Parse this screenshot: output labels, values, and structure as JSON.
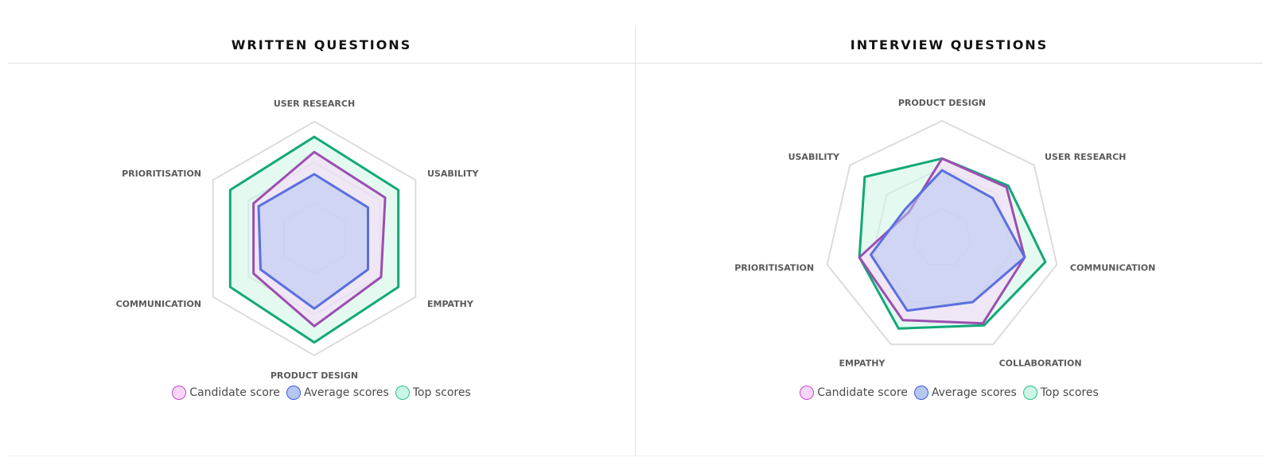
{
  "colors": {
    "candidate": {
      "stroke": "#9a4fb0",
      "fill": "#f7d6f9",
      "legend_border": "#c24bc9"
    },
    "average": {
      "stroke": "#5b6fdf",
      "fill": "#b5c7ee",
      "legend_border": "#3c5ad9"
    },
    "top": {
      "stroke": "#12a877",
      "fill": "#cdf5e6",
      "legend_border": "#2bbf8b"
    }
  },
  "legend": [
    {
      "key": "candidate",
      "label": "Candidate score"
    },
    {
      "key": "average",
      "label": "Average scores"
    },
    {
      "key": "top",
      "label": "Top scores"
    }
  ],
  "chart_data": [
    {
      "type": "radar",
      "title": "WRITTEN QUESTIONS",
      "axes": [
        "USER RESEARCH",
        "USABILITY",
        "EMPATHY",
        "PRODUCT DESIGN",
        "COMMUNICATION",
        "PRIORITISATION"
      ],
      "range": [
        0,
        100
      ],
      "grid_levels": [
        30,
        65,
        100
      ],
      "series": [
        {
          "key": "top",
          "values": [
            87,
            83,
            83,
            89,
            83,
            83
          ]
        },
        {
          "key": "candidate",
          "values": [
            74,
            70,
            66,
            75,
            60,
            60
          ]
        },
        {
          "key": "average",
          "values": [
            55,
            53,
            53,
            60,
            53,
            55
          ]
        }
      ]
    },
    {
      "type": "radar",
      "title": "INTERVIEW QUESTIONS",
      "axes": [
        "PRODUCT DESIGN",
        "USER RESEARCH",
        "COMMUNICATION",
        "COLLABORATION",
        "EMPATHY",
        "PRIORITISATION",
        "USABILITY"
      ],
      "range": [
        0,
        100
      ],
      "grid_levels": [
        25,
        60,
        100
      ],
      "series": [
        {
          "key": "top",
          "values": [
            68,
            72,
            90,
            82,
            85,
            72,
            84
          ]
        },
        {
          "key": "candidate",
          "values": [
            68,
            70,
            72,
            80,
            77,
            72,
            36
          ]
        },
        {
          "key": "average",
          "values": [
            58,
            55,
            72,
            60,
            68,
            62,
            40
          ]
        }
      ]
    }
  ]
}
